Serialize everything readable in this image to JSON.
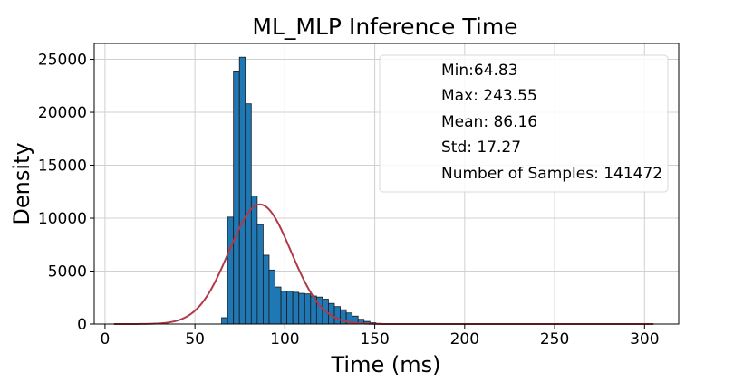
{
  "chart_data": {
    "type": "bar",
    "title": "ML_MLP Inference Time",
    "xlabel": "Time (ms)",
    "ylabel": "Density",
    "xlim": [
      -6,
      319
    ],
    "ylim": [
      0,
      26500
    ],
    "xticks": [
      0,
      50,
      100,
      150,
      200,
      250,
      300
    ],
    "yticks": [
      0,
      5000,
      10000,
      15000,
      20000,
      25000
    ],
    "grid": true,
    "bin_width": 3.3,
    "bins": [
      {
        "start": 64.83,
        "value": 600
      },
      {
        "start": 68.13,
        "value": 10100
      },
      {
        "start": 71.43,
        "value": 23900
      },
      {
        "start": 74.73,
        "value": 25200
      },
      {
        "start": 78.03,
        "value": 20800
      },
      {
        "start": 81.33,
        "value": 12100
      },
      {
        "start": 84.63,
        "value": 9400
      },
      {
        "start": 87.93,
        "value": 6500
      },
      {
        "start": 91.23,
        "value": 5100
      },
      {
        "start": 94.53,
        "value": 3500
      },
      {
        "start": 97.83,
        "value": 3100
      },
      {
        "start": 101.13,
        "value": 3100
      },
      {
        "start": 104.43,
        "value": 3000
      },
      {
        "start": 107.73,
        "value": 2900
      },
      {
        "start": 111.03,
        "value": 2850
      },
      {
        "start": 114.33,
        "value": 2650
      },
      {
        "start": 117.63,
        "value": 2550
      },
      {
        "start": 120.93,
        "value": 2350
      },
      {
        "start": 124.23,
        "value": 1950
      },
      {
        "start": 127.53,
        "value": 1650
      },
      {
        "start": 130.83,
        "value": 1350
      },
      {
        "start": 134.13,
        "value": 1050
      },
      {
        "start": 137.43,
        "value": 750
      },
      {
        "start": 140.73,
        "value": 450
      },
      {
        "start": 144.03,
        "value": 250
      },
      {
        "start": 147.33,
        "value": 120
      },
      {
        "start": 150.63,
        "value": 60
      },
      {
        "start": 153.93,
        "value": 30
      }
    ],
    "fit_curve": {
      "type": "normal",
      "mean": 86.16,
      "std": 17.27,
      "peak": 11300,
      "x_range": [
        5,
        305
      ],
      "color": "#b03a48"
    },
    "bar_color": "#1f77b4",
    "stats_box": {
      "placement": "top-right",
      "lines": [
        "Min:64.83",
        "Max: 243.55",
        "Mean: 86.16",
        "Std: 17.27",
        "Number of Samples: 141472"
      ]
    }
  }
}
